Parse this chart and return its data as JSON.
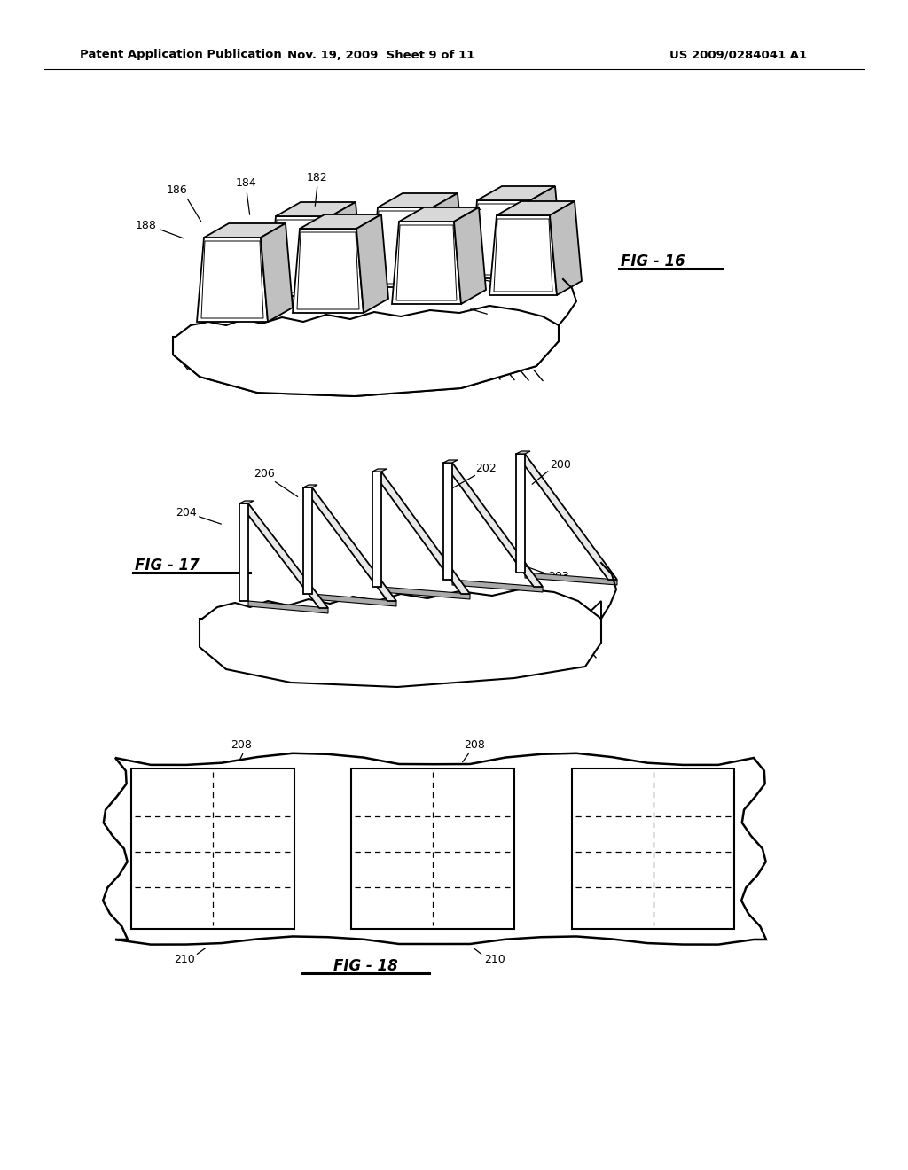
{
  "bg": "#ffffff",
  "header_left": "Patent Application Publication",
  "header_mid": "Nov. 19, 2009  Sheet 9 of 11",
  "header_right": "US 2009/0284041 A1",
  "fig16_label": "FIG - 16",
  "fig17_label": "FIG - 17",
  "fig18_label": "FIG - 18"
}
